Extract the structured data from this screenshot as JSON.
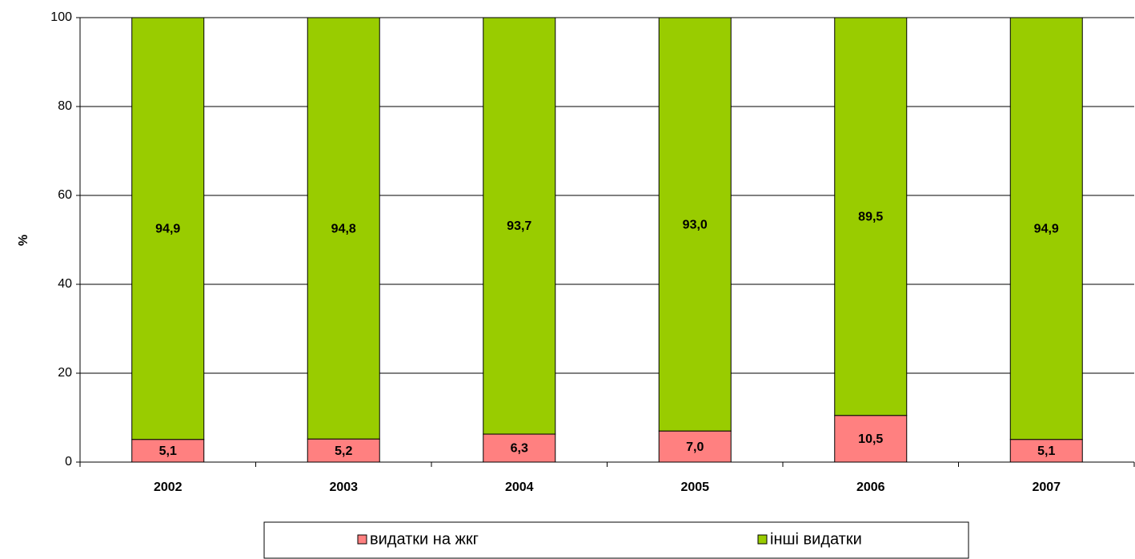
{
  "chart_data": {
    "type": "stacked_bar",
    "categories": [
      "2002",
      "2003",
      "2004",
      "2005",
      "2006",
      "2007"
    ],
    "y_label": "%",
    "series": [
      {
        "name": "видатки на жкг",
        "color": "#ff8080",
        "values": [
          5.1,
          5.2,
          6.3,
          7.0,
          10.5,
          5.1
        ],
        "value_labels": [
          "5,1",
          "5,2",
          "6,3",
          "7,0",
          "10,5",
          "5,1"
        ]
      },
      {
        "name": "інші видатки",
        "color": "#99cc00",
        "values": [
          94.9,
          94.8,
          93.7,
          93.0,
          89.5,
          94.9
        ],
        "value_labels": [
          "94,9",
          "94,8",
          "93,7",
          "93,0",
          "89,5",
          "94,9"
        ]
      }
    ],
    "ylim": [
      0,
      100
    ],
    "yticks": [
      0,
      20,
      40,
      60,
      80,
      100
    ],
    "grid": true,
    "legend": "bottom"
  }
}
